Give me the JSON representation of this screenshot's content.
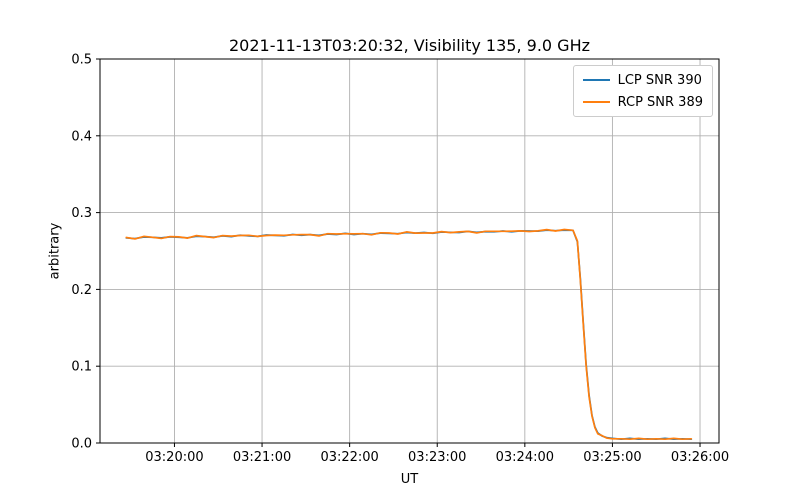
{
  "chart_data": {
    "type": "line",
    "title": "2021-11-13T03:20:32, Visibility 135, 9.0 GHz",
    "xlabel": "UT",
    "ylabel": "arbitrary",
    "x_unit": "seconds relative to 03:20:00 UT",
    "xlim": [
      -51,
      373
    ],
    "ylim": [
      0,
      0.5
    ],
    "grid": true,
    "grid_color": "#b0b0b0",
    "legend_position": "upper right",
    "xticks": {
      "values": [
        0,
        60,
        120,
        180,
        240,
        300,
        360
      ],
      "labels": [
        "03:20:00",
        "03:21:00",
        "03:22:00",
        "03:23:00",
        "03:24:00",
        "03:25:00",
        "03:26:00"
      ]
    },
    "yticks": {
      "values": [
        0,
        0.1,
        0.2,
        0.3,
        0.4,
        0.5
      ],
      "labels": [
        "0.0",
        "0.1",
        "0.2",
        "0.3",
        "0.4",
        "0.5"
      ]
    },
    "x": [
      -33,
      -27,
      -21,
      -15,
      -9,
      -3,
      3,
      9,
      15,
      21,
      27,
      33,
      39,
      45,
      51,
      57,
      63,
      69,
      75,
      81,
      87,
      93,
      99,
      105,
      111,
      117,
      123,
      129,
      135,
      141,
      147,
      153,
      159,
      165,
      171,
      177,
      183,
      189,
      195,
      201,
      207,
      213,
      219,
      225,
      231,
      237,
      243,
      249,
      255,
      261,
      267,
      273,
      276,
      278,
      280,
      282,
      284,
      286,
      288,
      290,
      293,
      296,
      300,
      306,
      312,
      318,
      324,
      330,
      336,
      342,
      348,
      354
    ],
    "series": [
      {
        "name": "LCP SNR 390",
        "color": "#1f77b4",
        "values": [
          0.267,
          0.2662,
          0.2682,
          0.2678,
          0.267,
          0.2684,
          0.2678,
          0.2672,
          0.2692,
          0.2688,
          0.268,
          0.2696,
          0.2688,
          0.2706,
          0.2696,
          0.269,
          0.2708,
          0.2703,
          0.2698,
          0.2715,
          0.2705,
          0.2713,
          0.2703,
          0.2721,
          0.2715,
          0.2729,
          0.2715,
          0.2725,
          0.2717,
          0.2733,
          0.2729,
          0.2725,
          0.2741,
          0.2733,
          0.2741,
          0.2731,
          0.2747,
          0.2743,
          0.2741,
          0.2755,
          0.2742,
          0.2753,
          0.275,
          0.276,
          0.275,
          0.2762,
          0.276,
          0.2758,
          0.2772,
          0.2764,
          0.2772,
          0.277,
          0.262,
          0.215,
          0.158,
          0.103,
          0.062,
          0.036,
          0.021,
          0.013,
          0.009,
          0.007,
          0.006,
          0.005,
          0.006,
          0.005,
          0.0055,
          0.005,
          0.006,
          0.005,
          0.0055,
          0.005
        ]
      },
      {
        "name": "RCP SNR 389",
        "color": "#ff7f0e",
        "values": [
          0.2676,
          0.2658,
          0.269,
          0.2678,
          0.2664,
          0.2688,
          0.2684,
          0.2668,
          0.27,
          0.2688,
          0.2674,
          0.27,
          0.2694,
          0.2702,
          0.2704,
          0.269,
          0.2702,
          0.2707,
          0.2704,
          0.2711,
          0.2713,
          0.2713,
          0.2697,
          0.2725,
          0.2721,
          0.2725,
          0.2723,
          0.2725,
          0.2711,
          0.2737,
          0.2735,
          0.2721,
          0.2749,
          0.2733,
          0.2735,
          0.2735,
          0.2753,
          0.2739,
          0.2749,
          0.2755,
          0.2736,
          0.2757,
          0.2756,
          0.2756,
          0.2758,
          0.2762,
          0.2754,
          0.2762,
          0.2778,
          0.276,
          0.278,
          0.277,
          0.263,
          0.213,
          0.156,
          0.101,
          0.06,
          0.035,
          0.02,
          0.012,
          0.0095,
          0.0065,
          0.0055,
          0.0055,
          0.005,
          0.006,
          0.005,
          0.0055,
          0.005,
          0.006,
          0.005,
          0.0055
        ]
      }
    ]
  }
}
